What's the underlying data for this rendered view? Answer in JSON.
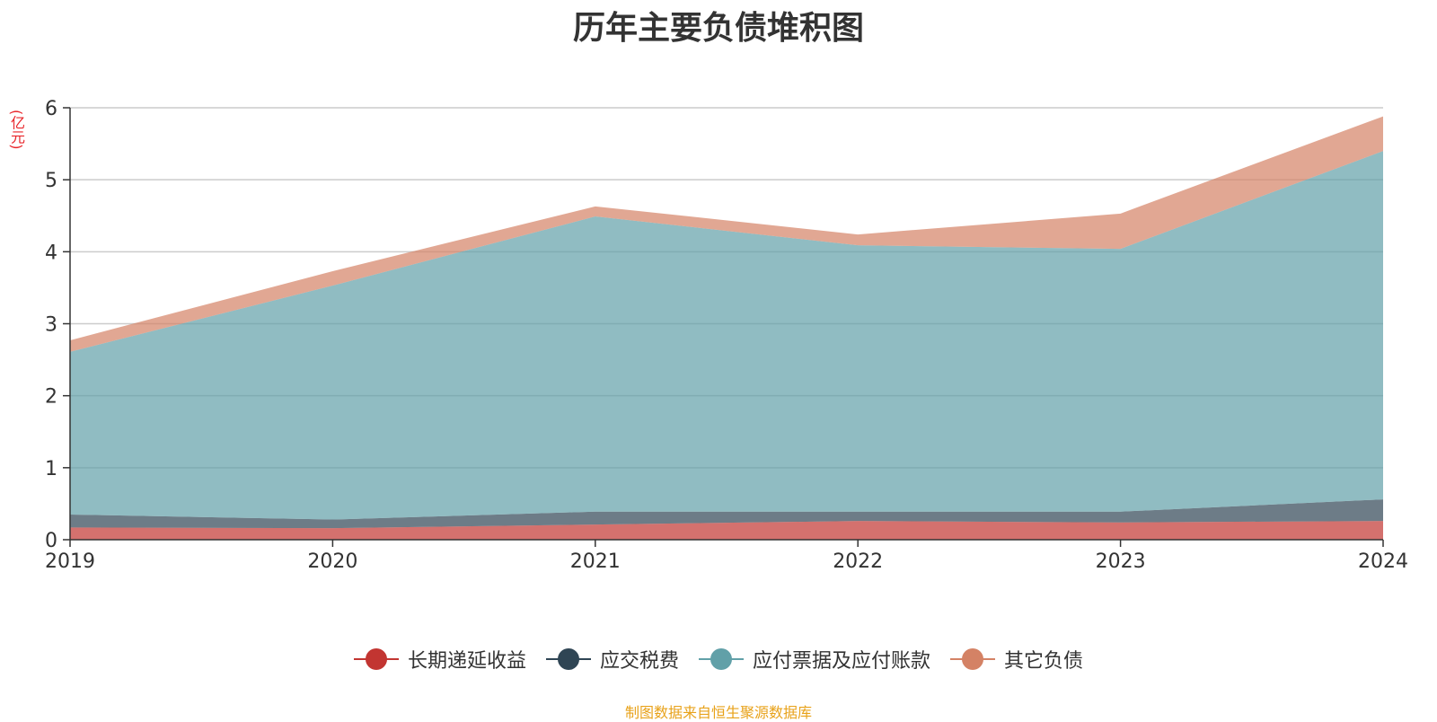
{
  "chart_data": {
    "type": "area",
    "stacked": true,
    "title": "历年主要负债堆积图",
    "unit": "(亿元)",
    "x": [
      "2019",
      "2020",
      "2021",
      "2022",
      "2023",
      "2024"
    ],
    "ylim": [
      0,
      6
    ],
    "yticks": [
      "0",
      "1",
      "2",
      "3",
      "4",
      "5",
      "6"
    ],
    "grid": true,
    "legend_position": "bottom-center",
    "series": [
      {
        "name": "长期递延收益",
        "color": "#c23531",
        "values": [
          0.17,
          0.16,
          0.21,
          0.26,
          0.24,
          0.26
        ]
      },
      {
        "name": "应交税费",
        "color": "#2f4554",
        "values": [
          0.18,
          0.12,
          0.18,
          0.13,
          0.15,
          0.3
        ]
      },
      {
        "name": "应付票据及应付账款",
        "color": "#61a0a8",
        "values": [
          2.26,
          3.25,
          4.1,
          3.7,
          3.65,
          4.84
        ]
      },
      {
        "name": "其它负债",
        "color": "#d48265",
        "values": [
          0.16,
          0.2,
          0.14,
          0.15,
          0.49,
          0.48
        ]
      }
    ]
  },
  "footer": {
    "source": "制图数据来自恒生聚源数据库"
  }
}
